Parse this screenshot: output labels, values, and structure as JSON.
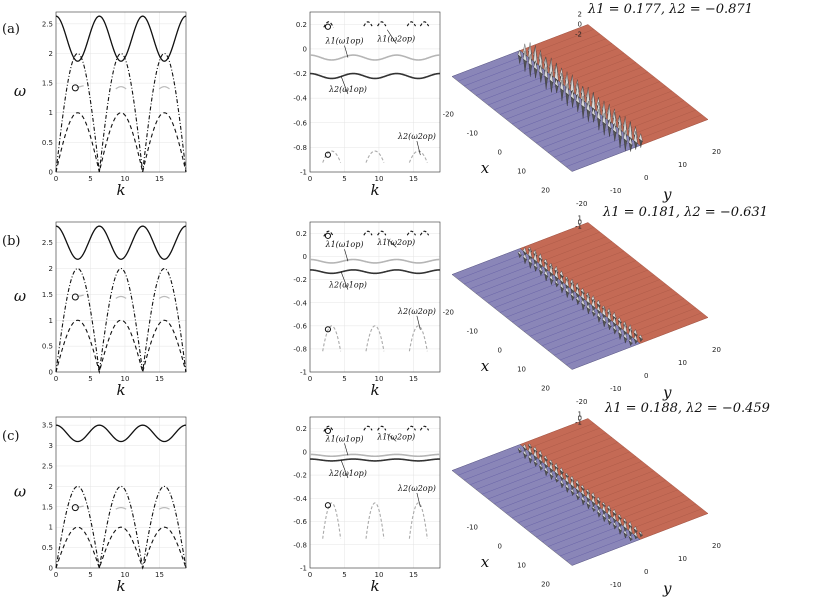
{
  "figure": {
    "rows": [
      {
        "label": "(a)",
        "title": "λ1 = 0.177, λ2 = −0.871"
      },
      {
        "label": "(b)",
        "title": "λ1 = 0.181, λ2 = −0.631"
      },
      {
        "label": "(c)",
        "title": "λ1 = 0.188, λ2 = −0.459"
      }
    ],
    "k_label": "k",
    "omega_label": "ω",
    "x_label": "x",
    "y_label": "y",
    "annotations": {
      "l1_1": "λ1(ω1op)",
      "l1_2": "λ1(ω2op)",
      "l2_1": "λ2(ω1op)",
      "l2_2": "λ2(ω2op)"
    }
  },
  "chart_data": [
    {
      "type": "line",
      "panel": "a-left",
      "xlabel": "k",
      "ylabel": "ω",
      "xlim": [
        0,
        18.85
      ],
      "ylim": [
        0,
        2.7
      ],
      "xticks": [
        0,
        5,
        10,
        15
      ],
      "yticks": [
        0,
        0.5,
        1,
        1.5,
        2,
        2.5
      ],
      "series": [
        {
          "name": "upper branch",
          "style": "solid",
          "formula": "2.25+0.38*cos(k)"
        },
        {
          "name": "dash-dot arch",
          "style": "dashdot",
          "formula": "2*|sin(k/2)|"
        },
        {
          "name": "dashed arch",
          "style": "dashed",
          "formula": "1*|sin(k/2)|"
        },
        {
          "name": "light segments",
          "style": "light",
          "centers": [
            9.42,
            15.71
          ],
          "value": 1.4
        }
      ],
      "marker": {
        "k": 2.8,
        "omega": 1.42
      }
    },
    {
      "type": "line",
      "panel": "a-mid",
      "xlabel": "k",
      "xlim": [
        0,
        18.85
      ],
      "ylim": [
        -1,
        0.3
      ],
      "xticks": [
        0,
        5,
        10,
        15
      ],
      "yticks": [
        -1,
        -0.8,
        -0.6,
        -0.4,
        -0.2,
        0,
        0.2
      ],
      "series": [
        {
          "name": "λ1 light line",
          "value": -0.07,
          "amp": 0.02
        },
        {
          "name": "λ2 dark line",
          "value": -0.22,
          "amp": 0.02
        },
        {
          "name": "top dashes",
          "value": 0.18
        },
        {
          "name": "bottom arches",
          "peak": -0.83
        }
      ],
      "marker": {
        "k": 2.6,
        "value": 0.18
      },
      "marker2": {
        "k": 2.6,
        "value": -0.86
      }
    },
    {
      "type": "line",
      "panel": "b-left",
      "xlabel": "k",
      "ylabel": "ω",
      "xlim": [
        0,
        18.85
      ],
      "ylim": [
        0,
        2.9
      ],
      "xticks": [
        0,
        5,
        10,
        15
      ],
      "yticks": [
        0,
        0.5,
        1,
        1.5,
        2,
        2.5
      ],
      "series": [
        {
          "name": "upper branch",
          "style": "solid",
          "formula": "2.5+0.32*cos(k)"
        },
        {
          "name": "dash-dot arch",
          "style": "dashdot",
          "formula": "2*|sin(k/2)|"
        },
        {
          "name": "dashed arch",
          "style": "dashed",
          "formula": "1*|sin(k/2)|"
        },
        {
          "name": "light segments",
          "style": "light",
          "centers": [
            9.42,
            15.71
          ],
          "value": 1.42
        }
      ],
      "marker": {
        "k": 2.8,
        "omega": 1.45
      }
    },
    {
      "type": "line",
      "panel": "b-mid",
      "xlabel": "k",
      "xlim": [
        0,
        18.85
      ],
      "ylim": [
        -1,
        0.3
      ],
      "xticks": [
        0,
        5,
        10,
        15
      ],
      "yticks": [
        -1,
        -0.8,
        -0.6,
        -0.4,
        -0.2,
        0,
        0.2
      ],
      "series": [
        {
          "name": "λ1 light line",
          "value": -0.04,
          "amp": 0.015
        },
        {
          "name": "λ2 dark line",
          "value": -0.13,
          "amp": 0.015
        },
        {
          "name": "top dashes",
          "value": 0.18
        },
        {
          "name": "bottom arches",
          "peak": -0.6
        }
      ],
      "marker": {
        "k": 2.6,
        "value": 0.18
      },
      "marker2": {
        "k": 2.6,
        "value": -0.63
      }
    },
    {
      "type": "line",
      "panel": "c-left",
      "xlabel": "k",
      "ylabel": "ω",
      "xlim": [
        0,
        18.85
      ],
      "ylim": [
        0,
        3.7
      ],
      "xticks": [
        0,
        5,
        10,
        15
      ],
      "yticks": [
        0,
        0.5,
        1,
        1.5,
        2,
        2.5,
        3,
        3.5
      ],
      "series": [
        {
          "name": "upper branch",
          "style": "solid",
          "formula": "3.3+0.2*cos(k)"
        },
        {
          "name": "dash-dot arch",
          "style": "dashdot",
          "formula": "2*|sin(k/2)|"
        },
        {
          "name": "dashed arch",
          "style": "dashed",
          "formula": "1*|sin(k/2)|"
        },
        {
          "name": "light segments",
          "style": "light",
          "centers": [
            9.42,
            15.71
          ],
          "value": 1.44
        }
      ],
      "marker": {
        "k": 2.8,
        "omega": 1.48
      }
    },
    {
      "type": "line",
      "panel": "c-mid",
      "xlabel": "k",
      "xlim": [
        0,
        18.85
      ],
      "ylim": [
        -1,
        0.3
      ],
      "xticks": [
        0,
        5,
        10,
        15
      ],
      "yticks": [
        -1,
        -0.8,
        -0.6,
        -0.4,
        -0.2,
        0,
        0.2
      ],
      "series": [
        {
          "name": "λ1 light line",
          "value": -0.03,
          "amp": 0.008
        },
        {
          "name": "λ2 dark line",
          "value": -0.07,
          "amp": 0.008
        },
        {
          "name": "top dashes",
          "value": 0.18
        },
        {
          "name": "bottom arches",
          "peak": -0.44
        }
      ],
      "marker": {
        "k": 2.6,
        "value": 0.18
      },
      "marker2": {
        "k": 2.6,
        "value": -0.46
      }
    },
    {
      "type": "surface",
      "panel": "a-right",
      "xticks": [
        -20,
        -10,
        0,
        10,
        20
      ],
      "yticks": [
        -20,
        -10,
        0,
        10,
        20
      ],
      "zticks": [
        -2,
        0,
        2
      ],
      "zrange": [
        -2.5,
        2.5
      ]
    },
    {
      "type": "surface",
      "panel": "b-right",
      "xticks": [
        -20,
        -10,
        0,
        10,
        20
      ],
      "yticks": [
        -20,
        -10,
        0,
        10,
        20
      ],
      "zticks": [
        -1,
        0,
        1
      ],
      "zrange": [
        -1.5,
        1.5
      ]
    },
    {
      "type": "surface",
      "panel": "c-right",
      "xticks": [
        -10,
        0,
        10,
        20
      ],
      "yticks": [
        -10,
        0,
        10,
        20
      ],
      "zticks": [
        -1,
        0,
        1
      ],
      "zrange": [
        -1.2,
        1.2
      ]
    }
  ]
}
